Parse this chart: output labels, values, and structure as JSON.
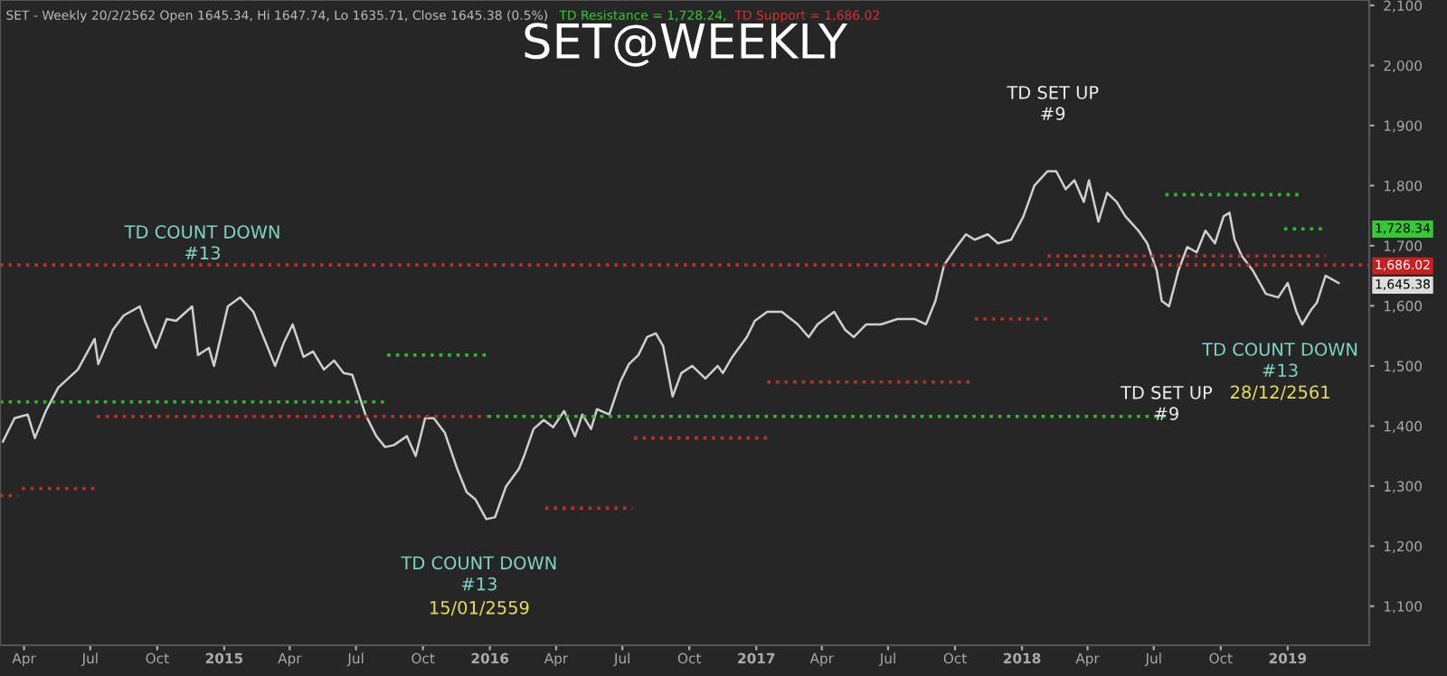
{
  "chart_data": {
    "type": "line",
    "title": "SET@WEEKLY",
    "xlim": [
      "2014-02-27",
      "2019-04-23"
    ],
    "ylim": [
      1035,
      2109
    ],
    "xticks": [
      {
        "value": "2014-04-01",
        "label": "Apr"
      },
      {
        "value": "2014-07-01",
        "label": "Jul"
      },
      {
        "value": "2014-10-01",
        "label": "Oct"
      },
      {
        "value": "2015-01-01",
        "label": "2015"
      },
      {
        "value": "2015-04-01",
        "label": "Apr"
      },
      {
        "value": "2015-07-01",
        "label": "Jul"
      },
      {
        "value": "2015-10-01",
        "label": "Oct"
      },
      {
        "value": "2016-01-01",
        "label": "2016"
      },
      {
        "value": "2016-04-01",
        "label": "Apr"
      },
      {
        "value": "2016-07-01",
        "label": "Jul"
      },
      {
        "value": "2016-10-01",
        "label": "Oct"
      },
      {
        "value": "2017-01-01",
        "label": "2017"
      },
      {
        "value": "2017-04-01",
        "label": "Apr"
      },
      {
        "value": "2017-07-01",
        "label": "Jul"
      },
      {
        "value": "2017-10-01",
        "label": "Oct"
      },
      {
        "value": "2018-01-01",
        "label": "2018"
      },
      {
        "value": "2018-04-01",
        "label": "Apr"
      },
      {
        "value": "2018-07-01",
        "label": "Jul"
      },
      {
        "value": "2018-10-01",
        "label": "Oct"
      },
      {
        "value": "2019-01-01",
        "label": "2019"
      }
    ],
    "yticks": [
      {
        "value": 1100,
        "label": "1,100"
      },
      {
        "value": 1200,
        "label": "1,200"
      },
      {
        "value": 1300,
        "label": "1,300"
      },
      {
        "value": 1400,
        "label": "1,400"
      },
      {
        "value": 1500,
        "label": "1,500"
      },
      {
        "value": 1600,
        "label": "1,600"
      },
      {
        "value": 1700,
        "label": "1,700"
      },
      {
        "value": 1800,
        "label": "1,800"
      },
      {
        "value": 1900,
        "label": "1,900"
      },
      {
        "value": 2000,
        "label": "2,000"
      },
      {
        "value": 2100,
        "label": "2,100"
      }
    ],
    "grid": false,
    "marker": "none",
    "series": [
      {
        "color": "#cfcfcf",
        "line_style": "solid",
        "x": [
          "2014-03-03",
          "2014-03-19",
          "2014-04-06",
          "2014-04-16",
          "2014-05-01",
          "2014-05-18",
          "2014-06-14",
          "2014-07-07",
          "2014-07-12",
          "2014-08-01",
          "2014-08-16",
          "2014-09-07",
          "2014-09-14",
          "2014-09-29",
          "2014-10-14",
          "2014-10-27",
          "2014-11-18",
          "2014-11-26",
          "2014-12-11",
          "2014-12-18",
          "2015-01-06",
          "2015-01-23",
          "2015-02-10",
          "2015-02-25",
          "2015-03-12",
          "2015-03-24",
          "2015-04-05",
          "2015-04-20",
          "2015-05-03",
          "2015-05-18",
          "2015-06-01",
          "2015-06-14",
          "2015-06-26",
          "2015-07-14",
          "2015-07-29",
          "2015-08-10",
          "2015-08-22",
          "2015-09-09",
          "2015-09-21",
          "2015-10-04",
          "2015-10-16",
          "2015-10-31",
          "2015-11-17",
          "2015-11-30",
          "2015-12-12",
          "2015-12-27",
          "2016-01-08",
          "2016-01-23",
          "2016-02-10",
          "2016-02-17",
          "2016-03-01",
          "2016-03-15",
          "2016-03-28",
          "2016-04-12",
          "2016-04-27",
          "2016-05-07",
          "2016-05-19",
          "2016-05-27",
          "2016-06-13",
          "2016-06-28",
          "2016-07-10",
          "2016-07-23",
          "2016-08-04",
          "2016-08-16",
          "2016-08-26",
          "2016-09-08",
          "2016-09-20",
          "2016-10-05",
          "2016-10-23",
          "2016-11-09",
          "2016-11-16",
          "2016-11-29",
          "2016-12-19",
          "2016-12-30",
          "2017-01-16",
          "2017-02-05",
          "2017-02-27",
          "2017-03-14",
          "2017-03-26",
          "2017-04-18",
          "2017-05-03",
          "2017-05-15",
          "2017-06-01",
          "2017-06-21",
          "2017-07-14",
          "2017-08-07",
          "2017-08-22",
          "2017-09-04",
          "2017-09-16",
          "2017-10-03",
          "2017-10-16",
          "2017-10-28",
          "2017-11-15",
          "2017-11-29",
          "2017-12-17",
          "2018-01-03",
          "2018-01-18",
          "2018-02-05",
          "2018-02-17",
          "2018-03-02",
          "2018-03-14",
          "2018-03-27",
          "2018-04-03",
          "2018-04-16",
          "2018-04-28",
          "2018-05-11",
          "2018-05-23",
          "2018-06-10",
          "2018-06-22",
          "2018-07-05",
          "2018-07-12",
          "2018-07-22",
          "2018-08-04",
          "2018-08-16",
          "2018-08-29",
          "2018-09-10",
          "2018-09-23",
          "2018-10-05",
          "2018-10-13",
          "2018-10-20",
          "2018-10-30",
          "2018-11-14",
          "2018-12-02",
          "2018-12-19",
          "2019-01-01",
          "2019-01-13",
          "2019-01-21",
          "2019-02-02",
          "2019-02-10",
          "2019-02-22",
          "2019-03-12"
        ],
        "values": [
          1374,
          1413,
          1419,
          1380,
          1425,
          1464,
          1494,
          1545,
          1503,
          1560,
          1584,
          1599,
          1575,
          1530,
          1578,
          1575,
          1599,
          1518,
          1530,
          1500,
          1599,
          1614,
          1590,
          1545,
          1500,
          1539,
          1569,
          1515,
          1524,
          1494,
          1509,
          1488,
          1485,
          1419,
          1383,
          1365,
          1368,
          1383,
          1350,
          1413,
          1413,
          1389,
          1329,
          1290,
          1278,
          1245,
          1248,
          1299,
          1329,
          1350,
          1395,
          1410,
          1398,
          1425,
          1383,
          1419,
          1395,
          1428,
          1419,
          1473,
          1503,
          1518,
          1548,
          1554,
          1533,
          1449,
          1488,
          1500,
          1479,
          1500,
          1488,
          1515,
          1548,
          1575,
          1590,
          1590,
          1569,
          1548,
          1569,
          1590,
          1560,
          1548,
          1569,
          1569,
          1578,
          1578,
          1569,
          1608,
          1668,
          1698,
          1719,
          1710,
          1719,
          1704,
          1710,
          1749,
          1800,
          1824,
          1824,
          1794,
          1809,
          1773,
          1809,
          1740,
          1788,
          1773,
          1749,
          1725,
          1704,
          1659,
          1608,
          1599,
          1659,
          1698,
          1689,
          1725,
          1704,
          1749,
          1755,
          1710,
          1683,
          1659,
          1620,
          1614,
          1638,
          1590,
          1569,
          1593,
          1605,
          1650,
          1638
        ]
      },
      {
        "color": "#c0302a",
        "line_style": "dotted",
        "x": [
          "2014-02-27",
          "2019-04-23"
        ],
        "values": [
          1668,
          1668
        ]
      },
      {
        "color": "#c0302a",
        "line_style": "dotted",
        "x": [
          "2014-02-27",
          "2014-03-24"
        ],
        "values": [
          1284,
          1284
        ]
      },
      {
        "color": "#c0302a",
        "line_style": "dotted",
        "x": [
          "2014-03-29",
          "2014-07-10"
        ],
        "values": [
          1296,
          1296
        ]
      },
      {
        "color": "#2fb82f",
        "line_style": "dotted",
        "x": [
          "2014-02-27",
          "2015-08-10"
        ],
        "values": [
          1440,
          1440
        ]
      },
      {
        "color": "#c0302a",
        "line_style": "dotted",
        "x": [
          "2014-07-10",
          "2015-12-29"
        ],
        "values": [
          1416,
          1416
        ]
      },
      {
        "color": "#2fb82f",
        "line_style": "dotted",
        "x": [
          "2015-08-13",
          "2015-12-29"
        ],
        "values": [
          1518,
          1518
        ]
      },
      {
        "color": "#2fb82f",
        "line_style": "dotted",
        "x": [
          "2015-12-29",
          "2018-07-17"
        ],
        "values": [
          1416,
          1416
        ]
      },
      {
        "color": "#c0302a",
        "line_style": "dotted",
        "x": [
          "2016-03-17",
          "2016-07-15"
        ],
        "values": [
          1263,
          1263
        ]
      },
      {
        "color": "#c0302a",
        "line_style": "dotted",
        "x": [
          "2016-07-17",
          "2017-01-16"
        ],
        "values": [
          1380,
          1380
        ]
      },
      {
        "color": "#c0302a",
        "line_style": "dotted",
        "x": [
          "2017-01-16",
          "2017-10-28"
        ],
        "values": [
          1473,
          1473
        ]
      },
      {
        "color": "#c0302a",
        "line_style": "dotted",
        "x": [
          "2017-10-28",
          "2018-02-05"
        ],
        "values": [
          1578,
          1578
        ]
      },
      {
        "color": "#c0302a",
        "line_style": "dotted",
        "x": [
          "2018-02-05",
          "2019-02-22"
        ],
        "values": [
          1683,
          1683
        ]
      },
      {
        "color": "#2fb82f",
        "line_style": "dotted",
        "x": [
          "2018-07-17",
          "2019-01-21"
        ],
        "values": [
          1785,
          1785
        ]
      },
      {
        "color": "#2fb82f",
        "line_style": "dotted",
        "x": [
          "2018-12-27",
          "2019-02-22"
        ],
        "values": [
          1728,
          1728
        ]
      }
    ],
    "annotations": [
      "SET - Weekly 20/2/2562 Open 1645.34, Hi 1647.74, Lo 1635.71, Close 1645.38 (0.5%)",
      "TD Resistance = 1,728.24,",
      "TD Support = 1,686.02",
      "TD COUNT DOWN\n#13",
      "TD COUNT DOWN\n#13",
      "15/01/2559",
      "TD SET UP\n#9",
      "TD SET UP\n#9",
      "TD COUNT DOWN\n#13",
      "28/12/2561",
      "1,728.34",
      "1,686.02",
      "1,645.38"
    ]
  }
}
